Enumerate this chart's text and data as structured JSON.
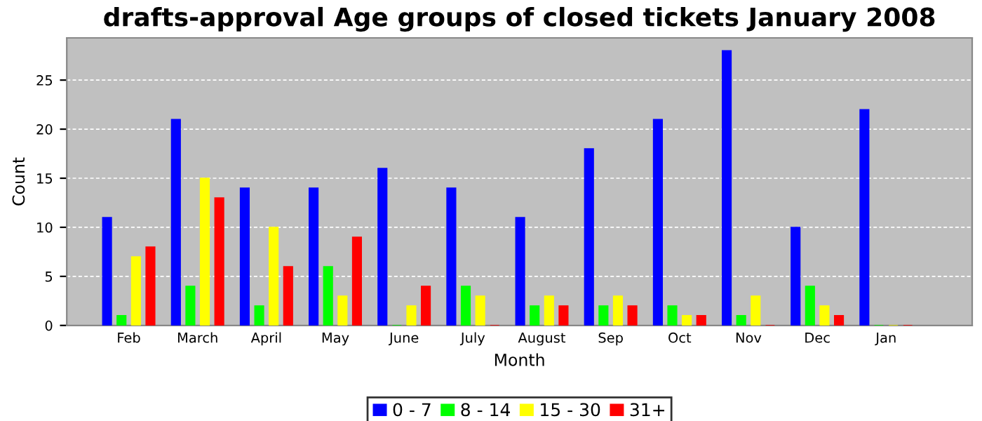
{
  "chart_data": {
    "type": "bar",
    "title": "drafts-approval Age groups of closed tickets January 2008",
    "xlabel": "Month",
    "ylabel": "Count",
    "categories": [
      "Feb",
      "March",
      "April",
      "May",
      "June",
      "July",
      "August",
      "Sep",
      "Oct",
      "Nov",
      "Dec",
      "Jan"
    ],
    "series": [
      {
        "name": "0 - 7",
        "color": "#0000ff",
        "values": [
          11,
          21,
          14,
          14,
          16,
          14,
          11,
          18,
          21,
          28,
          10,
          22
        ]
      },
      {
        "name": "8 - 14",
        "color": "#00ff00",
        "values": [
          1,
          4,
          2,
          6,
          0,
          4,
          2,
          2,
          2,
          1,
          4,
          0
        ]
      },
      {
        "name": "15 - 30",
        "color": "#ffff00",
        "values": [
          7,
          15,
          10,
          3,
          2,
          3,
          3,
          3,
          1,
          3,
          2,
          0
        ]
      },
      {
        "name": "31+",
        "color": "#ff0000",
        "values": [
          8,
          13,
          6,
          9,
          4,
          0,
          2,
          2,
          1,
          0,
          1,
          0
        ]
      }
    ],
    "ylim": [
      0,
      29.3
    ],
    "yticks": [
      0,
      5,
      10,
      15,
      20,
      25
    ],
    "grid": "y",
    "legend": "bottom"
  }
}
